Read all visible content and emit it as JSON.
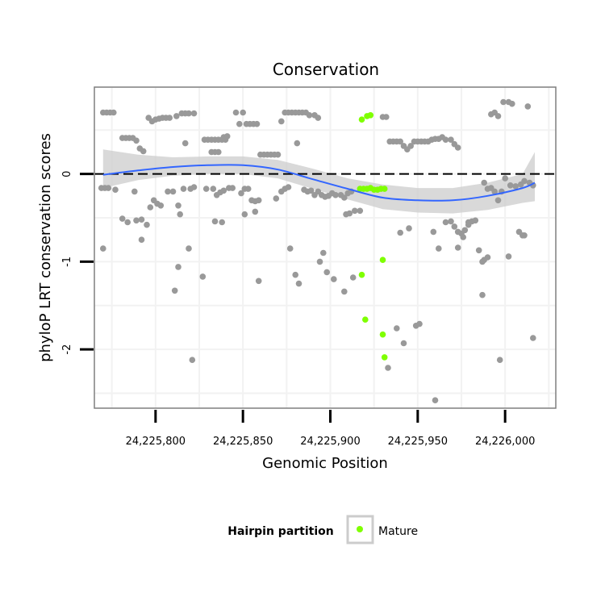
{
  "chart_data": {
    "type": "scatter",
    "title": "Conservation",
    "xlabel": "Genomic Position",
    "ylabel": "phyloP LRT conservation scores",
    "xlim": [
      24225765,
      24226029
    ],
    "ylim": [
      -2.67,
      0.99
    ],
    "x_ticks": [
      24225800,
      24225850,
      24225900,
      24225950,
      24226000
    ],
    "x_tick_labels": [
      "24,225,800",
      "24,225,850",
      "24,225,900",
      "24,225,950",
      "24,226,000"
    ],
    "y_ticks": [
      -2,
      -1,
      0
    ],
    "y_tick_labels": [
      "-2",
      "-1",
      "0"
    ],
    "reference_line": {
      "y": 0,
      "style": "dashed",
      "color": "#000000"
    },
    "colors": {
      "other": "#999999",
      "mature": "#7fff00",
      "smooth": "#3366ff",
      "ribbon": "#cccccc",
      "panel_grid": "#f2f2f2",
      "border": "#7f7f7f"
    },
    "legend": {
      "title": "Hairpin partition",
      "items": [
        {
          "label": "Mature",
          "color": "#7fff00"
        }
      ],
      "position": "bottom"
    },
    "smooth": {
      "x": [
        24225770,
        24225790,
        24225810,
        24225830,
        24225850,
        24225870,
        24225890,
        24225910,
        24225930,
        24225950,
        24225970,
        24225990,
        24226010,
        24226017
      ],
      "y": [
        -0.01,
        0.04,
        0.08,
        0.1,
        0.1,
        0.05,
        -0.06,
        -0.17,
        -0.27,
        -0.3,
        -0.3,
        -0.25,
        -0.16,
        -0.1
      ],
      "lower": [
        -0.16,
        -0.07,
        -0.02,
        0.0,
        0.0,
        -0.05,
        -0.17,
        -0.29,
        -0.4,
        -0.44,
        -0.45,
        -0.41,
        -0.33,
        -0.31
      ],
      "upper": [
        0.28,
        0.22,
        0.19,
        0.2,
        0.2,
        0.16,
        0.06,
        -0.05,
        -0.12,
        -0.16,
        -0.16,
        -0.1,
        0.0,
        0.25
      ]
    },
    "series": [
      {
        "name": "Other",
        "points": [
          [
            24225770,
            0.7
          ],
          [
            24225772,
            0.7
          ],
          [
            24225774,
            0.7
          ],
          [
            24225776,
            0.7
          ],
          [
            24225769,
            -0.16
          ],
          [
            24225771,
            -0.16
          ],
          [
            24225773,
            -0.16
          ],
          [
            24225777,
            -0.18
          ],
          [
            24225770,
            -0.85
          ],
          [
            24225781,
            0.41
          ],
          [
            24225783,
            0.41
          ],
          [
            24225785,
            0.41
          ],
          [
            24225787,
            0.41
          ],
          [
            24225789,
            0.38
          ],
          [
            24225791,
            0.29
          ],
          [
            24225793,
            0.26
          ],
          [
            24225781,
            -0.51
          ],
          [
            24225784,
            -0.55
          ],
          [
            24225789,
            -0.53
          ],
          [
            24225792,
            -0.52
          ],
          [
            24225788,
            -0.2
          ],
          [
            24225792,
            -0.75
          ],
          [
            24225795,
            -0.58
          ],
          [
            24225797,
            -0.38
          ],
          [
            24225799,
            -0.3
          ],
          [
            24225801,
            -0.34
          ],
          [
            24225803,
            -0.36
          ],
          [
            24225796,
            0.64
          ],
          [
            24225798,
            0.6
          ],
          [
            24225800,
            0.62
          ],
          [
            24225802,
            0.63
          ],
          [
            24225804,
            0.64
          ],
          [
            24225806,
            0.64
          ],
          [
            24225808,
            0.64
          ],
          [
            24225812,
            0.66
          ],
          [
            24225807,
            -0.2
          ],
          [
            24225810,
            -0.2
          ],
          [
            24225814,
            -0.46
          ],
          [
            24225813,
            -0.36
          ],
          [
            24225815,
            0.69
          ],
          [
            24225817,
            0.69
          ],
          [
            24225819,
            0.69
          ],
          [
            24225822,
            0.69
          ],
          [
            24225817,
            0.35
          ],
          [
            24225816,
            -0.17
          ],
          [
            24225820,
            -0.17
          ],
          [
            24225822,
            -0.15
          ],
          [
            24225819,
            -0.85
          ],
          [
            24225813,
            -1.06
          ],
          [
            24225811,
            -1.33
          ],
          [
            24225821,
            -2.12
          ],
          [
            24225827,
            -1.17
          ],
          [
            24225828,
            0.39
          ],
          [
            24225830,
            0.39
          ],
          [
            24225832,
            0.39
          ],
          [
            24225834,
            0.39
          ],
          [
            24225836,
            0.39
          ],
          [
            24225838,
            0.39
          ],
          [
            24225840,
            0.39
          ],
          [
            24225832,
            0.25
          ],
          [
            24225834,
            0.25
          ],
          [
            24225836,
            0.25
          ],
          [
            24225839,
            0.42
          ],
          [
            24225841,
            0.43
          ],
          [
            24225829,
            -0.17
          ],
          [
            24225833,
            -0.17
          ],
          [
            24225835,
            -0.24
          ],
          [
            24225837,
            -0.21
          ],
          [
            24225839,
            -0.19
          ],
          [
            24225842,
            -0.16
          ],
          [
            24225844,
            -0.16
          ],
          [
            24225834,
            -0.54
          ],
          [
            24225838,
            -0.55
          ],
          [
            24225846,
            0.7
          ],
          [
            24225850,
            0.7
          ],
          [
            24225848,
            0.57
          ],
          [
            24225852,
            0.57
          ],
          [
            24225854,
            0.57
          ],
          [
            24225856,
            0.57
          ],
          [
            24225858,
            0.57
          ],
          [
            24225849,
            -0.22
          ],
          [
            24225851,
            -0.17
          ],
          [
            24225853,
            -0.17
          ],
          [
            24225855,
            -0.3
          ],
          [
            24225857,
            -0.31
          ],
          [
            24225859,
            -0.3
          ],
          [
            24225851,
            -0.46
          ],
          [
            24225857,
            -0.43
          ],
          [
            24225859,
            -1.22
          ],
          [
            24225860,
            0.22
          ],
          [
            24225862,
            0.22
          ],
          [
            24225864,
            0.22
          ],
          [
            24225866,
            0.22
          ],
          [
            24225868,
            0.22
          ],
          [
            24225870,
            0.22
          ],
          [
            24225869,
            -0.28
          ],
          [
            24225872,
            -0.2
          ],
          [
            24225874,
            -0.17
          ],
          [
            24225876,
            -0.15
          ],
          [
            24225872,
            0.6
          ],
          [
            24225874,
            0.7
          ],
          [
            24225876,
            0.7
          ],
          [
            24225878,
            0.7
          ],
          [
            24225880,
            0.7
          ],
          [
            24225882,
            0.7
          ],
          [
            24225884,
            0.7
          ],
          [
            24225886,
            0.7
          ],
          [
            24225888,
            0.67
          ],
          [
            24225891,
            0.67
          ],
          [
            24225893,
            0.64
          ],
          [
            24225881,
            0.35
          ],
          [
            24225877,
            -0.85
          ],
          [
            24225880,
            -1.15
          ],
          [
            24225882,
            -1.25
          ],
          [
            24225885,
            -0.18
          ],
          [
            24225887,
            -0.2
          ],
          [
            24225889,
            -0.19
          ],
          [
            24225891,
            -0.24
          ],
          [
            24225893,
            -0.2
          ],
          [
            24225895,
            -0.24
          ],
          [
            24225897,
            -0.26
          ],
          [
            24225899,
            -0.25
          ],
          [
            24225901,
            -0.22
          ],
          [
            24225903,
            -0.24
          ],
          [
            24225906,
            -0.24
          ],
          [
            24225908,
            -0.27
          ],
          [
            24225910,
            -0.22
          ],
          [
            24225912,
            -0.2
          ],
          [
            24225894,
            -1.0
          ],
          [
            24225896,
            -0.9
          ],
          [
            24225898,
            -1.12
          ],
          [
            24225902,
            -1.2
          ],
          [
            24225908,
            -1.34
          ],
          [
            24225913,
            -1.18
          ],
          [
            24225909,
            -0.46
          ],
          [
            24225911,
            -0.45
          ],
          [
            24225914,
            -0.42
          ],
          [
            24225917,
            -0.42
          ],
          [
            24225930,
            0.65
          ],
          [
            24225932,
            0.65
          ],
          [
            24225934,
            0.37
          ],
          [
            24225936,
            0.37
          ],
          [
            24225938,
            0.37
          ],
          [
            24225940,
            0.37
          ],
          [
            24225942,
            0.32
          ],
          [
            24225944,
            0.28
          ],
          [
            24225946,
            0.32
          ],
          [
            24225948,
            0.37
          ],
          [
            24225950,
            0.37
          ],
          [
            24225952,
            0.37
          ],
          [
            24225954,
            0.37
          ],
          [
            24225956,
            0.37
          ],
          [
            24225958,
            0.39
          ],
          [
            24225960,
            0.4
          ],
          [
            24225962,
            0.4
          ],
          [
            24225964,
            0.42
          ],
          [
            24225966,
            0.39
          ],
          [
            24225969,
            0.39
          ],
          [
            24225971,
            0.34
          ],
          [
            24225973,
            0.3
          ],
          [
            24225940,
            -0.67
          ],
          [
            24225945,
            -0.62
          ],
          [
            24225959,
            -0.66
          ],
          [
            24225962,
            -0.85
          ],
          [
            24225933,
            -2.21
          ],
          [
            24225938,
            -1.76
          ],
          [
            24225942,
            -1.93
          ],
          [
            24225949,
            -1.73
          ],
          [
            24225951,
            -1.71
          ],
          [
            24225960,
            -2.58
          ],
          [
            24225966,
            -0.55
          ],
          [
            24225969,
            -0.54
          ],
          [
            24225971,
            -0.6
          ],
          [
            24225975,
            -0.68
          ],
          [
            24225977,
            -0.64
          ],
          [
            24225979,
            -0.58
          ],
          [
            24225981,
            -0.54
          ],
          [
            24225983,
            -0.53
          ],
          [
            24225973,
            -0.66
          ],
          [
            24225976,
            -0.72
          ],
          [
            24225973,
            -0.84
          ],
          [
            24225979,
            -0.55
          ],
          [
            24225985,
            -0.87
          ],
          [
            24225987,
            -1.0
          ],
          [
            24225988,
            -0.98
          ],
          [
            24225990,
            -0.95
          ],
          [
            24225987,
            -1.38
          ],
          [
            24225990,
            -0.17
          ],
          [
            24225992,
            -0.16
          ],
          [
            24225994,
            -0.2
          ],
          [
            24225996,
            -0.3
          ],
          [
            24225988,
            -0.1
          ],
          [
            24225998,
            -0.2
          ],
          [
            24225992,
            0.68
          ],
          [
            24225994,
            0.7
          ],
          [
            24225996,
            0.66
          ],
          [
            24225999,
            0.82
          ],
          [
            24226002,
            0.82
          ],
          [
            24226004,
            0.8
          ],
          [
            24226013,
            0.77
          ],
          [
            24225997,
            -2.12
          ],
          [
            24226000,
            -0.05
          ],
          [
            24226003,
            -0.13
          ],
          [
            24226006,
            -0.14
          ],
          [
            24226009,
            -0.12
          ],
          [
            24226011,
            -0.08
          ],
          [
            24226014,
            -0.1
          ],
          [
            24226016,
            -0.13
          ],
          [
            24226008,
            -0.66
          ],
          [
            24226010,
            -0.7
          ],
          [
            24226011,
            -0.7
          ],
          [
            24226002,
            -0.94
          ],
          [
            24226016,
            -1.87
          ]
        ]
      },
      {
        "name": "Mature",
        "points": [
          [
            24225918,
            0.62
          ],
          [
            24225921,
            0.66
          ],
          [
            24225923,
            0.67
          ],
          [
            24225917,
            -0.17
          ],
          [
            24225919,
            -0.17
          ],
          [
            24225921,
            -0.17
          ],
          [
            24225923,
            -0.16
          ],
          [
            24225925,
            -0.18
          ],
          [
            24225927,
            -0.18
          ],
          [
            24225929,
            -0.17
          ],
          [
            24225931,
            -0.17
          ],
          [
            24225918,
            -1.15
          ],
          [
            24225930,
            -0.98
          ],
          [
            24225920,
            -1.66
          ],
          [
            24225930,
            -1.83
          ],
          [
            24225931,
            -2.09
          ]
        ]
      }
    ]
  }
}
